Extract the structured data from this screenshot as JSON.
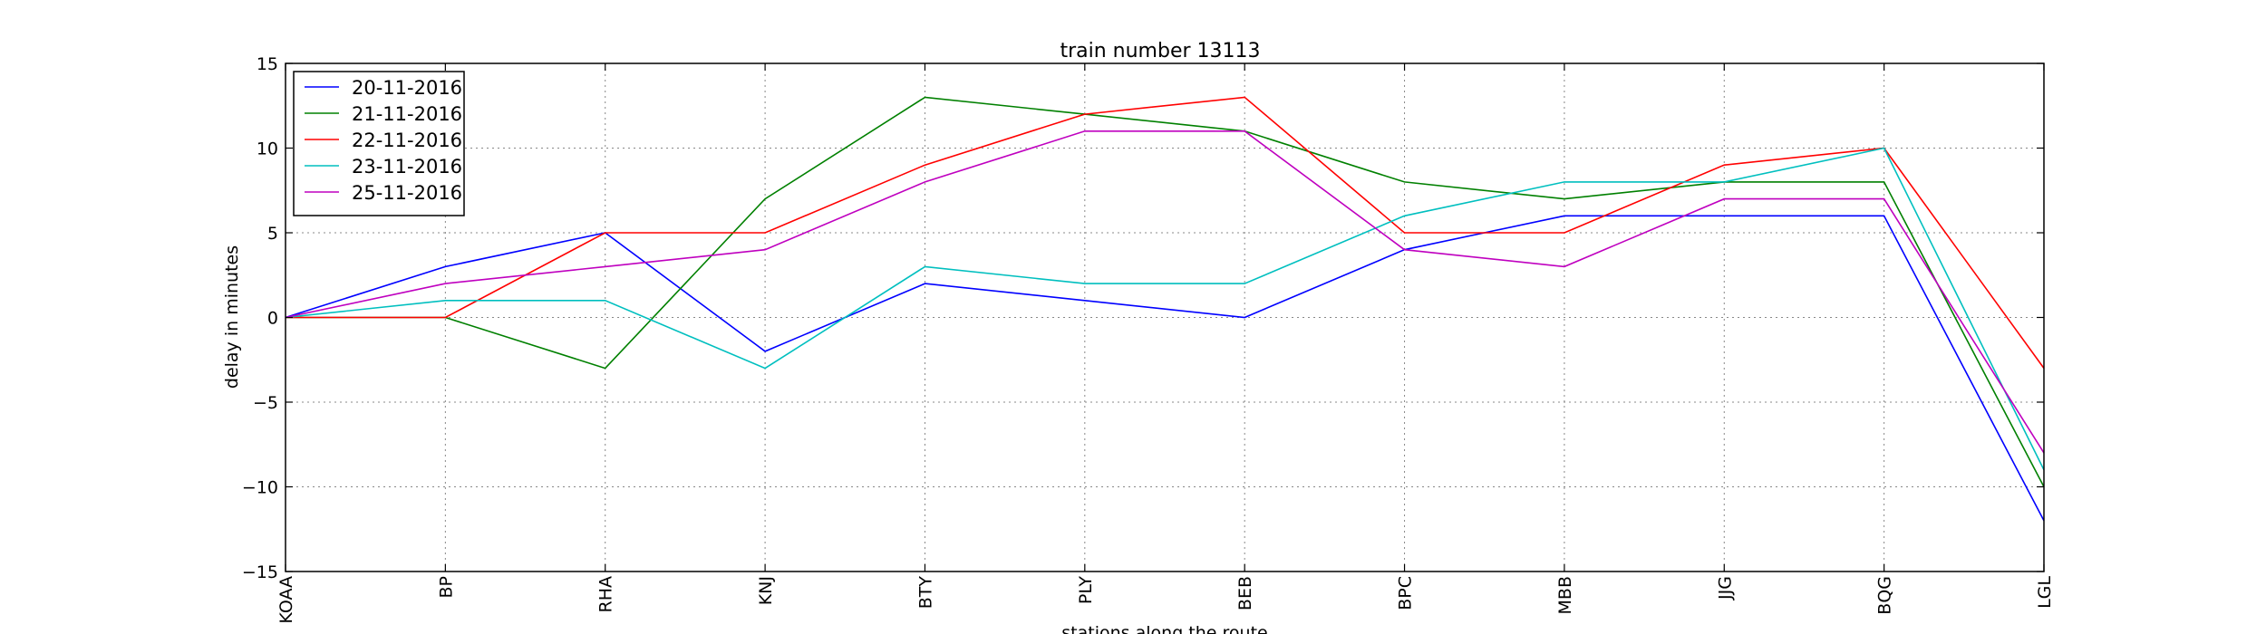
{
  "chart_data": {
    "type": "line",
    "title": "train number 13113",
    "xlabel": "stations along the route",
    "ylabel": "delay in minutes",
    "categories": [
      "KOAA",
      "BP",
      "RHA",
      "KNJ",
      "BTY",
      "PLY",
      "BEB",
      "BPC",
      "MBB",
      "JJG",
      "BQG",
      "LGL"
    ],
    "ylim": [
      -15,
      15
    ],
    "yticks": [
      -15,
      -10,
      -5,
      0,
      5,
      10,
      15
    ],
    "ytick_labels": [
      "−15",
      "−10",
      "−5",
      "0",
      "5",
      "10",
      "15"
    ],
    "grid": true,
    "legend_position": "top-left",
    "series": [
      {
        "name": "20-11-2016",
        "color": "#0000ff",
        "values": [
          0,
          3,
          5,
          -2,
          2,
          1,
          0,
          4,
          6,
          6,
          6,
          -12
        ]
      },
      {
        "name": "21-11-2016",
        "color": "#008000",
        "values": [
          0,
          0,
          -3,
          7,
          13,
          12,
          11,
          8,
          7,
          8,
          8,
          -10
        ]
      },
      {
        "name": "22-11-2016",
        "color": "#ff0000",
        "values": [
          0,
          0,
          5,
          5,
          9,
          12,
          13,
          5,
          5,
          9,
          10,
          -3
        ]
      },
      {
        "name": "23-11-2016",
        "color": "#00bfbf",
        "values": [
          0,
          1,
          1,
          -3,
          3,
          2,
          2,
          6,
          8,
          8,
          10,
          -9
        ]
      },
      {
        "name": "25-11-2016",
        "color": "#bf00bf",
        "values": [
          0,
          2,
          3,
          4,
          8,
          11,
          11,
          4,
          3,
          7,
          7,
          -8
        ]
      }
    ]
  }
}
